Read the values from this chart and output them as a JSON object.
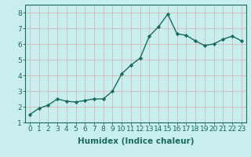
{
  "x": [
    0,
    1,
    2,
    3,
    4,
    5,
    6,
    7,
    8,
    9,
    10,
    11,
    12,
    13,
    14,
    15,
    16,
    17,
    18,
    19,
    20,
    21,
    22,
    23
  ],
  "y": [
    1.5,
    1.9,
    2.1,
    2.5,
    2.35,
    2.3,
    2.4,
    2.5,
    2.5,
    3.0,
    4.1,
    4.65,
    5.1,
    6.5,
    7.1,
    7.9,
    6.65,
    6.55,
    6.2,
    5.9,
    6.0,
    6.3,
    6.5,
    6.2
  ],
  "line_color": "#1a6b5e",
  "marker": "D",
  "marker_size": 2.2,
  "bg_color": "#c8eeee",
  "grid_color": "#b0d4d4",
  "xlabel": "Humidex (Indice chaleur)",
  "xlim": [
    -0.5,
    23.5
  ],
  "ylim": [
    1,
    8.5
  ],
  "yticks": [
    1,
    2,
    3,
    4,
    5,
    6,
    7,
    8
  ],
  "xticks": [
    0,
    1,
    2,
    3,
    4,
    5,
    6,
    7,
    8,
    9,
    10,
    11,
    12,
    13,
    14,
    15,
    16,
    17,
    18,
    19,
    20,
    21,
    22,
    23
  ],
  "xlabel_fontsize": 7.5,
  "tick_fontsize": 6.5,
  "line_width": 1.0,
  "spine_color": "#1a6b5e"
}
